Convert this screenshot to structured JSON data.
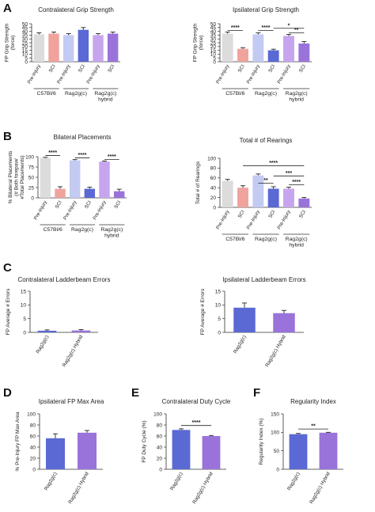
{
  "panel_letters": [
    "A",
    "B",
    "C",
    "D",
    "E",
    "F"
  ],
  "colors": {
    "grey": "#dcdcdc",
    "pink": "#f0a39d",
    "light_blue": "#c3cbf3",
    "blue": "#5a69d4",
    "light_purple": "#c7a5ee",
    "purple": "#9a73da",
    "error": "#222222"
  },
  "chart_data": [
    {
      "id": "A1",
      "type": "bar",
      "title": "Contralateral Grip Strength",
      "ylabel": "FP Grip Strength\n(force)",
      "ylim": [
        0,
        50
      ],
      "yticks": [
        0,
        5,
        10,
        15,
        20,
        25,
        30,
        35,
        40,
        45,
        50
      ],
      "categories": [
        "Pre-Injury",
        "SCI",
        "Pre-Injury",
        "SCI",
        "Pre-Injury",
        "SCI"
      ],
      "values": [
        36,
        37,
        35,
        42,
        35,
        37
      ],
      "errors": [
        2,
        2,
        2,
        3,
        2,
        2
      ],
      "colors": [
        "grey",
        "pink",
        "light_blue",
        "blue",
        "light_purple",
        "purple"
      ],
      "groups": [
        {
          "label": "C57Bl/6",
          "start": 0,
          "end": 1
        },
        {
          "label": "Rag2g(c)",
          "start": 2,
          "end": 3
        },
        {
          "label": "Rag2g(c)\nhybrid",
          "start": 4,
          "end": 5
        }
      ],
      "sig": []
    },
    {
      "id": "A2",
      "type": "bar",
      "title": "Ipsilateral Grip Strength",
      "ylabel": "FP Grip Strength\n(force)",
      "ylim": [
        0,
        50
      ],
      "yticks": [
        0,
        5,
        10,
        15,
        20,
        25,
        30,
        35,
        40,
        45,
        50
      ],
      "categories": [
        "Pre-Injury",
        "SCI",
        "Pre-Injury",
        "SCI",
        "Pre-Injury",
        "SCI"
      ],
      "values": [
        37,
        17,
        36,
        15,
        34,
        24
      ],
      "errors": [
        2,
        1.5,
        2,
        1.5,
        2,
        2.5
      ],
      "colors": [
        "grey",
        "pink",
        "light_blue",
        "blue",
        "light_purple",
        "purple"
      ],
      "groups": [
        {
          "label": "C57Bl/6",
          "start": 0,
          "end": 1
        },
        {
          "label": "Rag2g(c)",
          "start": 2,
          "end": 3
        },
        {
          "label": "Rag2g(c)\nhybrid",
          "start": 4,
          "end": 5
        }
      ],
      "sig": [
        {
          "a": 0,
          "b": 1,
          "y": 41,
          "label": "****"
        },
        {
          "a": 2,
          "b": 3,
          "y": 41,
          "label": "****"
        },
        {
          "a": 4,
          "b": 5,
          "y": 38,
          "label": "**"
        },
        {
          "a": 3,
          "b": 5,
          "y": 44,
          "label": "*"
        }
      ]
    },
    {
      "id": "B1",
      "type": "bar",
      "title": "Bilateral Placements",
      "ylabel": "% Bilateral Placements\n(# Both forepaw/\n#Total Placements)",
      "ylim": [
        0,
        100
      ],
      "yticks": [
        0,
        25,
        50,
        75,
        100
      ],
      "categories": [
        "Pre-Injury",
        "SCI",
        "Pre-Injury",
        "SCI",
        "Pre-Injury",
        "SCI"
      ],
      "values": [
        97,
        22,
        91,
        22,
        88,
        16
      ],
      "errors": [
        1.5,
        5,
        2,
        4,
        1.5,
        5
      ],
      "colors": [
        "grey",
        "pink",
        "light_blue",
        "blue",
        "light_purple",
        "purple"
      ],
      "groups": [
        {
          "label": "C57Bl/6",
          "start": 0,
          "end": 1
        },
        {
          "label": "Rag2g(c)",
          "start": 2,
          "end": 3
        },
        {
          "label": "Rag2g(c)\nhybrid",
          "start": 4,
          "end": 5
        }
      ],
      "sig": [
        {
          "a": 0,
          "b": 1,
          "y": 103,
          "label": "****"
        },
        {
          "a": 2,
          "b": 3,
          "y": 97,
          "label": "****"
        },
        {
          "a": 4,
          "b": 5,
          "y": 93,
          "label": "****"
        }
      ]
    },
    {
      "id": "B2",
      "type": "bar",
      "title": "Total # of Rearings",
      "ylabel": "Total # of Rearings",
      "ylim": [
        0,
        100
      ],
      "yticks": [
        0,
        20,
        40,
        60,
        80,
        100
      ],
      "categories": [
        "Pre-Injury",
        "SCI",
        "Pre-Injury",
        "SCI",
        "Pre-Injury",
        "SCI"
      ],
      "values": [
        54,
        40,
        65,
        38,
        38,
        18
      ],
      "errors": [
        3,
        4,
        3,
        4,
        3,
        2
      ],
      "colors": [
        "grey",
        "pink",
        "light_blue",
        "blue",
        "light_purple",
        "purple"
      ],
      "groups": [
        {
          "label": "C57Bl/6",
          "start": 0,
          "end": 1
        },
        {
          "label": "Rag2g(c)",
          "start": 2,
          "end": 3
        },
        {
          "label": "Rag2g(c)\nhybrid",
          "start": 4,
          "end": 5
        }
      ],
      "sig": [
        {
          "a": 2,
          "b": 3,
          "y": 49,
          "label": "**"
        },
        {
          "a": 4,
          "b": 5,
          "y": 46,
          "label": "****"
        },
        {
          "a": 3,
          "b": 5,
          "y": 64,
          "label": "***"
        },
        {
          "a": 1,
          "b": 5,
          "y": 85,
          "label": "****"
        }
      ]
    },
    {
      "id": "C1",
      "type": "bar",
      "title": "Contralateral Ladderbeam Errors",
      "ylabel": "FP Average # Errors",
      "ylim": [
        0,
        15
      ],
      "yticks": [
        0,
        5,
        10,
        15
      ],
      "categories": [
        "Rag2g(c)",
        "Rag2g(c) Hybrid"
      ],
      "values": [
        0.6,
        0.7
      ],
      "errors": [
        0.3,
        0.3
      ],
      "colors": [
        "blue",
        "purple"
      ],
      "groups": [],
      "sig": []
    },
    {
      "id": "C2",
      "type": "bar",
      "title": "Ipsilateral Ladderbeam Errors",
      "ylabel": "FP Average # Errors",
      "ylim": [
        0,
        15
      ],
      "yticks": [
        0,
        5,
        10,
        15
      ],
      "categories": [
        "Rag2g(c)",
        "Rag2g(c) Hybrid"
      ],
      "values": [
        9,
        7
      ],
      "errors": [
        1.7,
        1
      ],
      "colors": [
        "blue",
        "purple"
      ],
      "groups": [],
      "sig": []
    },
    {
      "id": "D",
      "type": "bar",
      "title": "Ipsilateral FP Max Area",
      "ylabel": "% Pre-Injury FP Max Area",
      "ylim": [
        0,
        100
      ],
      "yticks": [
        0,
        20,
        40,
        60,
        80,
        100
      ],
      "categories": [
        "Rag2g(c)",
        "Rag2g(c) Hybrid"
      ],
      "values": [
        56,
        66
      ],
      "errors": [
        8,
        4
      ],
      "colors": [
        "blue",
        "purple"
      ],
      "groups": [],
      "sig": []
    },
    {
      "id": "E",
      "type": "bar",
      "title": "Contralateral Duty Cycle",
      "ylabel": "FP Duty Cycle (%)",
      "ylim": [
        0,
        100
      ],
      "yticks": [
        0,
        20,
        40,
        60,
        80,
        100
      ],
      "categories": [
        "Rag2g(c)",
        "Rag2g(c) Hybrid"
      ],
      "values": [
        71,
        60
      ],
      "errors": [
        2,
        1
      ],
      "colors": [
        "blue",
        "purple"
      ],
      "groups": [],
      "sig": [
        {
          "a": 0,
          "b": 1,
          "y": 79,
          "label": "****"
        }
      ]
    },
    {
      "id": "F",
      "type": "bar",
      "title": "Regularity Index",
      "ylabel": "Regularity Index (%)",
      "ylim": [
        0,
        150
      ],
      "yticks": [
        0,
        50,
        100,
        150
      ],
      "categories": [
        "Rag2g(c)",
        "Rag2g(c) Hybrid"
      ],
      "values": [
        95,
        99
      ],
      "errors": [
        2,
        1
      ],
      "colors": [
        "blue",
        "purple"
      ],
      "groups": [],
      "sig": [
        {
          "a": 0,
          "b": 1,
          "y": 109,
          "label": "**"
        }
      ]
    }
  ]
}
